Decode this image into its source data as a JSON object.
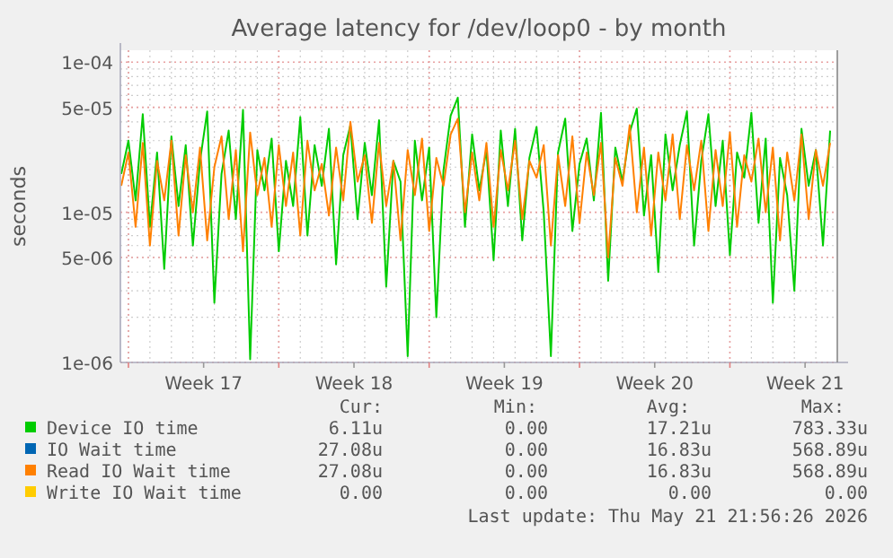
{
  "chart_data": {
    "type": "line",
    "title": "Average latency for /dev/loop0 - by month",
    "ylabel": "seconds",
    "log": true,
    "grid": true,
    "legend": "bottom",
    "xlim": [
      "2026-04-19T15:00",
      "2026-05-23T00:00"
    ],
    "ylim": [
      1e-06,
      0.00012
    ],
    "yticks": [
      {
        "value": 1e-06,
        "label": "1e-06"
      },
      {
        "value": 5e-06,
        "label": "5e-06"
      },
      {
        "value": 1e-05,
        "label": "1e-05"
      },
      {
        "value": 5e-05,
        "label": "5e-05"
      },
      {
        "value": 0.0001,
        "label": "1e-04"
      }
    ],
    "xticks": [
      {
        "value": "2026-04-20",
        "label": null
      },
      {
        "value": "2026-04-23T12:00",
        "label": "Week 17"
      },
      {
        "value": "2026-04-27",
        "label": null
      },
      {
        "value": "2026-04-30T12:00",
        "label": "Week 18"
      },
      {
        "value": "2026-05-04",
        "label": null
      },
      {
        "value": "2026-05-07T12:00",
        "label": "Week 19"
      },
      {
        "value": "2026-05-11",
        "label": null
      },
      {
        "value": "2026-05-14T12:00",
        "label": "Week 20"
      },
      {
        "value": "2026-05-18",
        "label": null
      },
      {
        "value": "2026-05-21T12:00",
        "label": "Week 21"
      }
    ],
    "x": [
      "2026-04-19T16:00",
      "2026-04-20T00:00",
      "2026-04-20T08:00",
      "2026-04-20T16:00",
      "2026-04-21T00:00",
      "2026-04-21T08:00",
      "2026-04-21T16:00",
      "2026-04-22T00:00",
      "2026-04-22T08:00",
      "2026-04-22T16:00",
      "2026-04-23T00:00",
      "2026-04-23T08:00",
      "2026-04-23T16:00",
      "2026-04-24T00:00",
      "2026-04-24T08:00",
      "2026-04-24T16:00",
      "2026-04-25T00:00",
      "2026-04-25T08:00",
      "2026-04-25T16:00",
      "2026-04-26T00:00",
      "2026-04-26T08:00",
      "2026-04-26T16:00",
      "2026-04-27T00:00",
      "2026-04-27T08:00",
      "2026-04-27T16:00",
      "2026-04-28T00:00",
      "2026-04-28T08:00",
      "2026-04-28T16:00",
      "2026-04-29T00:00",
      "2026-04-29T08:00",
      "2026-04-29T16:00",
      "2026-04-30T00:00",
      "2026-04-30T08:00",
      "2026-04-30T16:00",
      "2026-05-01T00:00",
      "2026-05-01T08:00",
      "2026-05-01T16:00",
      "2026-05-02T00:00",
      "2026-05-02T08:00",
      "2026-05-02T16:00",
      "2026-05-03T00:00",
      "2026-05-03T08:00",
      "2026-05-03T16:00",
      "2026-05-04T00:00",
      "2026-05-04T08:00",
      "2026-05-04T16:00",
      "2026-05-05T00:00",
      "2026-05-05T08:00",
      "2026-05-05T16:00",
      "2026-05-06T00:00",
      "2026-05-06T08:00",
      "2026-05-06T16:00",
      "2026-05-07T00:00",
      "2026-05-07T08:00",
      "2026-05-07T16:00",
      "2026-05-08T00:00",
      "2026-05-08T08:00",
      "2026-05-08T16:00",
      "2026-05-09T00:00",
      "2026-05-09T08:00",
      "2026-05-09T16:00",
      "2026-05-10T00:00",
      "2026-05-10T08:00",
      "2026-05-10T16:00",
      "2026-05-11T00:00",
      "2026-05-11T08:00",
      "2026-05-11T16:00",
      "2026-05-12T00:00",
      "2026-05-12T08:00",
      "2026-05-12T16:00",
      "2026-05-13T00:00",
      "2026-05-13T08:00",
      "2026-05-13T16:00",
      "2026-05-14T00:00",
      "2026-05-14T08:00",
      "2026-05-14T16:00",
      "2026-05-15T00:00",
      "2026-05-15T08:00",
      "2026-05-15T16:00",
      "2026-05-16T00:00",
      "2026-05-16T08:00",
      "2026-05-16T16:00",
      "2026-05-17T00:00",
      "2026-05-17T08:00",
      "2026-05-17T16:00",
      "2026-05-18T00:00",
      "2026-05-18T08:00",
      "2026-05-18T16:00",
      "2026-05-19T00:00",
      "2026-05-19T08:00",
      "2026-05-19T16:00",
      "2026-05-20T00:00",
      "2026-05-20T08:00",
      "2026-05-20T16:00",
      "2026-05-21T00:00",
      "2026-05-21T08:00",
      "2026-05-21T16:00",
      "2026-05-22T00:00",
      "2026-05-22T08:00",
      "2026-05-22T16:00"
    ],
    "series": [
      {
        "name": "Device IO time",
        "color": "#00cc00",
        "values": [
          1.8e-05,
          3e-05,
          1.2e-05,
          4.5e-05,
          8e-06,
          2.5e-05,
          4.2e-06,
          3.2e-05,
          1.1e-05,
          2.8e-05,
          6e-06,
          2.2e-05,
          4.7e-05,
          2.5e-06,
          1.8e-05,
          3.5e-05,
          9e-06,
          4.8e-05,
          1.05e-06,
          2.6e-05,
          1.4e-05,
          3.1e-05,
          5.5e-06,
          2.2e-05,
          1.1e-05,
          4.3e-05,
          7e-06,
          2.8e-05,
          1.5e-05,
          3.6e-05,
          4.5e-06,
          2.4e-05,
          3.8e-05,
          9e-06,
          2.9e-05,
          1.3e-05,
          4.1e-05,
          3.2e-06,
          2.2e-05,
          1.6e-05,
          1.1e-06,
          3e-05,
          1.2e-05,
          2.7e-05,
          2e-06,
          1.9e-05,
          4.4e-05,
          5.8e-05,
          8e-06,
          3.3e-05,
          1.4e-05,
          2.6e-05,
          4.8e-06,
          3.5e-05,
          1.1e-05,
          3.6e-05,
          6.5e-06,
          2.3e-05,
          3.7e-05,
          1e-05,
          1.1e-06,
          2.5e-05,
          4.2e-05,
          7.5e-06,
          2.1e-05,
          3.1e-05,
          1.2e-05,
          4.6e-05,
          3.5e-06,
          2.7e-05,
          1.6e-05,
          3.4e-05,
          4.9e-05,
          9.5e-06,
          2.4e-05,
          4e-06,
          3.3e-05,
          1.4e-05,
          2.8e-05,
          4.7e-05,
          6e-06,
          2.2e-05,
          4.5e-05,
          1.1e-05,
          3e-05,
          5.2e-06,
          2.5e-05,
          1.7e-05,
          4.6e-05,
          8.5e-06,
          3.1e-05,
          2.5e-06,
          2.3e-05,
          1.3e-05,
          3e-06,
          3.6e-05,
          1.5e-05,
          2.6e-05,
          6e-06,
          3.5e-05
        ]
      },
      {
        "name": "IO Wait time",
        "color": "#0066b3",
        "values": [
          null,
          null,
          null,
          null,
          null,
          null,
          null,
          null,
          null,
          null,
          null,
          null,
          null,
          null,
          null,
          null,
          null,
          null,
          null,
          null,
          null,
          null,
          null,
          null,
          null,
          null,
          null,
          null,
          null,
          null,
          null,
          null,
          null,
          null,
          null,
          null,
          null,
          null,
          null,
          null,
          null,
          null,
          null,
          null,
          null,
          null,
          null,
          null,
          null,
          null,
          null,
          null,
          null,
          null,
          null,
          null,
          null,
          null,
          null,
          null,
          null,
          null,
          null,
          null,
          null,
          null,
          null,
          null,
          null,
          null,
          null,
          null,
          null,
          null,
          null,
          null,
          null,
          null,
          null,
          null,
          null,
          null,
          null,
          null,
          null,
          null,
          null,
          null,
          null,
          null,
          null,
          null,
          null,
          null,
          null,
          null,
          null,
          null,
          null,
          null
        ]
      },
      {
        "name": "Read IO Wait time",
        "color": "#ff8000",
        "values": [
          1.5e-05,
          2.5e-05,
          8e-06,
          2.9e-05,
          6e-06,
          2.2e-05,
          1.2e-05,
          3e-05,
          7e-06,
          2.4e-05,
          1e-05,
          2.7e-05,
          6.5e-06,
          2e-05,
          3.2e-05,
          9e-06,
          2.6e-05,
          5.5e-06,
          3.4e-05,
          1.3e-05,
          2.3e-05,
          8e-06,
          2.8e-05,
          1.1e-05,
          2.5e-05,
          7e-06,
          3e-05,
          1.4e-05,
          2.1e-05,
          9.5e-06,
          2.7e-05,
          1.2e-05,
          4e-05,
          1.6e-05,
          2.4e-05,
          8.5e-06,
          2.9e-05,
          1.1e-05,
          2.2e-05,
          6.5e-06,
          2.6e-05,
          1.3e-05,
          3.1e-05,
          7.5e-06,
          2.3e-05,
          1.5e-05,
          3.3e-05,
          4.2e-05,
          1e-05,
          2.5e-05,
          1.2e-05,
          2.9e-05,
          8e-06,
          2.6e-05,
          1.4e-05,
          3e-05,
          9e-06,
          2.2e-05,
          1.7e-05,
          2.8e-05,
          6e-06,
          2.4e-05,
          1.1e-05,
          3.2e-05,
          8.5e-06,
          2.5e-05,
          1.3e-05,
          2.9e-05,
          5e-06,
          2.3e-05,
          1.5e-05,
          3.8e-05,
          1e-05,
          2.7e-05,
          7e-06,
          2.5e-05,
          1.2e-05,
          3.3e-05,
          9e-06,
          2.8e-05,
          1.4e-05,
          3e-05,
          7.5e-06,
          2.6e-05,
          1.1e-05,
          3.4e-05,
          8e-06,
          2.4e-05,
          1.6e-05,
          3.1e-05,
          1e-05,
          2.7e-05,
          6.5e-06,
          2.5e-05,
          1.2e-05,
          3.3e-05,
          9e-06,
          2.6e-05,
          1.5e-05,
          2.9e-05
        ]
      },
      {
        "name": "Write IO Wait time",
        "color": "#ffcc00",
        "values": [
          null,
          null,
          null,
          null,
          null,
          null,
          null,
          null,
          null,
          null,
          null,
          null,
          null,
          null,
          null,
          null,
          null,
          null,
          null,
          null,
          null,
          null,
          null,
          null,
          null,
          null,
          null,
          null,
          null,
          null,
          null,
          null,
          null,
          null,
          null,
          null,
          null,
          null,
          null,
          null,
          null,
          null,
          null,
          null,
          null,
          null,
          null,
          null,
          null,
          null,
          null,
          null,
          null,
          null,
          null,
          null,
          null,
          null,
          null,
          null,
          null,
          null,
          null,
          null,
          null,
          null,
          null,
          null,
          null,
          null,
          null,
          null,
          null,
          null,
          null,
          null,
          null,
          null,
          null,
          null,
          null,
          null,
          null,
          null,
          null,
          null,
          null,
          null,
          null,
          null,
          null,
          null,
          null,
          null,
          null,
          null,
          null,
          null,
          null,
          null
        ]
      }
    ],
    "annotations": [
      "Cur:",
      "Min:",
      "Avg:",
      "Max:",
      "6.11u",
      "0.00",
      "17.21u",
      "783.33u",
      "27.08u",
      "0.00",
      "16.83u",
      "568.89u",
      "27.08u",
      "0.00",
      "16.83u",
      "568.89u",
      "0.00",
      "0.00",
      "0.00",
      "0.00",
      "Last update: Thu May 21 21:56:26 2026"
    ]
  }
}
